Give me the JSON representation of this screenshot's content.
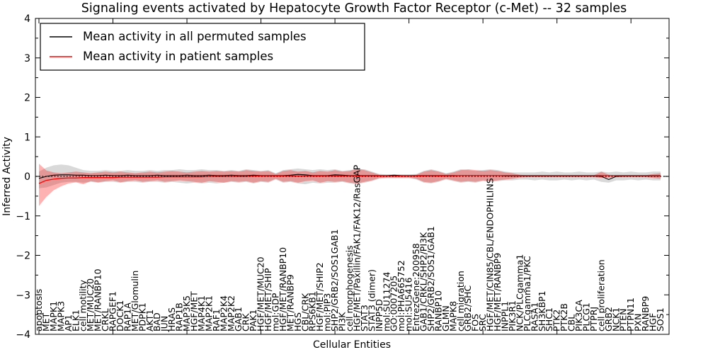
{
  "figure": {
    "title": "Signaling events activated by Hepatocyte Growth Factor Receptor (c-Met) -- 32 samples",
    "xlabel": "Cellular Entities",
    "ylabel": "Inferred Activity"
  },
  "legend": {
    "position": "upper left",
    "items": [
      {
        "label": "Mean activity in all permuted samples",
        "color": "#000000"
      },
      {
        "label": "Mean activity in patient samples",
        "color": "#ff0000"
      }
    ]
  },
  "colors": {
    "permuted_line": "#000000",
    "patient_line": "#ff0000",
    "permuted_band": "#a0a0a0",
    "patient_band": "#ff0000",
    "axis": "#000000",
    "background": "#ffffff"
  },
  "chart_data": {
    "type": "line",
    "title": "Signaling events activated by Hepatocyte Growth Factor Receptor (c-Met) -- 32 samples",
    "xlabel": "Cellular Entities",
    "ylabel": "Inferred Activity",
    "ylim": [
      -4,
      4
    ],
    "yticks": [
      4,
      3,
      2,
      1,
      0,
      -1,
      -2,
      -3,
      -4
    ],
    "grid": false,
    "legend_position": "upper left",
    "zero_line": "dotted black at y=0",
    "x_tick_label_rotation": 90,
    "categories": [
      "apoptosis",
      "MET",
      "MAPK1",
      "MAPK3",
      "AP1",
      "ELK1",
      "cell motility",
      "MET/MUC20",
      "MET/RANBP10",
      "CRKL",
      "RAPGEF1",
      "DOCK1",
      "RAP1A",
      "MET/Glomulin",
      "PDPK1",
      "AKT1",
      "BAD",
      "JUN",
      "HRAS",
      "RAP1B",
      "MAP3K5",
      "HGF/MET",
      "MAP4K1",
      "MAP2K1",
      "RAF1",
      "MAP2K4",
      "MAP2K2",
      "GAB1",
      "CRK",
      "PAK1",
      "HGF/MET/MUC20",
      "HGF/MET/SHIP",
      "mol:GDP",
      "HGF/MET/RANBP10",
      "MET/RANBP9",
      "HGS",
      "CBL/CRK",
      "RPS6KB1",
      "HGF/MET/SHIP2",
      "mol:PIP3",
      "SHP2/GRB2/SOS1GAB1",
      "PI3K",
      "cell morphogenesis",
      "HGF/MET/Paxillin/FAK1/FAK12/RasGAP",
      "STAT3",
      "STAT3 (dimer)",
      "INPP5D",
      "mol:SU11274",
      "GO:0007205",
      "mol:PHA665752",
      "mol:SU5416",
      "EntrezGene:200958",
      "GAB1/CRKL/SHP2/PI3K",
      "SHP2/GRB2/SOS1/GAB1",
      "RANBP10",
      "GLMN",
      "MAPK8",
      "cell migration",
      "GRB2/SHC",
      "FOS",
      "SRC",
      "HGF/MET/CIN85/CBL/ENDOPHILINS",
      "HGF/MET/RANBP9",
      "INPPL1",
      "PIK3R1",
      "NCK/PLCgamma1",
      "PLCgamma1/PKC",
      "RASA1",
      "SH3KBP1",
      "SHC1",
      "PTK2",
      "PTK2B",
      "CBL",
      "PIK3CA",
      "PLCG1",
      "PTPRJ",
      "cell proliferation",
      "GRB2",
      "NCK1",
      "PTEN",
      "PTPN11",
      "PXN",
      "RANBP9",
      "HGF",
      "SOS1"
    ],
    "series": [
      {
        "name": "Mean activity in all permuted samples",
        "color": "#000000",
        "band_color": "#a0a0a0",
        "band_opacity": 0.4,
        "values": [
          -0.05,
          0.0,
          0.03,
          0.04,
          0.04,
          0.03,
          0.03,
          0.02,
          0.02,
          0.03,
          0.02,
          0.02,
          0.03,
          0.02,
          0.02,
          0.02,
          0.03,
          0.02,
          0.02,
          0.02,
          0.03,
          0.02,
          0.02,
          0.03,
          0.02,
          0.02,
          0.03,
          0.02,
          0.02,
          0.03,
          0.02,
          0.02,
          0.02,
          0.02,
          0.03,
          0.05,
          0.04,
          0.02,
          0.02,
          0.02,
          0.04,
          0.03,
          0.02,
          0.02,
          0.02,
          0.02,
          0.02,
          0.02,
          0.03,
          0.02,
          0.02,
          0.02,
          0.02,
          0.02,
          0.02,
          0.02,
          0.02,
          0.02,
          0.02,
          0.02,
          0.02,
          0.02,
          0.02,
          0.01,
          0.01,
          0.01,
          0.01,
          0.01,
          0.01,
          0.01,
          0.01,
          0.01,
          0.01,
          0.01,
          0.01,
          0.01,
          0.0,
          -0.08,
          0.0,
          0.01,
          0.01,
          0.01,
          0.01,
          0.01,
          0.01
        ],
        "band_upper": [
          0.12,
          0.22,
          0.28,
          0.3,
          0.28,
          0.22,
          0.16,
          0.14,
          0.14,
          0.16,
          0.14,
          0.14,
          0.16,
          0.14,
          0.14,
          0.16,
          0.14,
          0.16,
          0.16,
          0.18,
          0.16,
          0.16,
          0.18,
          0.16,
          0.16,
          0.14,
          0.16,
          0.14,
          0.18,
          0.16,
          0.14,
          0.16,
          0.08,
          0.16,
          0.18,
          0.2,
          0.18,
          0.16,
          0.18,
          0.16,
          0.18,
          0.14,
          0.16,
          0.18,
          0.18,
          0.12,
          0.06,
          0.05,
          0.05,
          0.05,
          0.05,
          0.06,
          0.14,
          0.18,
          0.14,
          0.08,
          0.12,
          0.18,
          0.16,
          0.14,
          0.16,
          0.18,
          0.16,
          0.12,
          0.1,
          0.1,
          0.1,
          0.1,
          0.12,
          0.1,
          0.12,
          0.1,
          0.1,
          0.12,
          0.1,
          0.1,
          0.12,
          0.1,
          0.12,
          0.1,
          0.12,
          0.1,
          0.1,
          0.12,
          0.12
        ],
        "band_lower": [
          -0.3,
          -0.28,
          -0.22,
          -0.16,
          -0.14,
          -0.14,
          -0.16,
          -0.14,
          -0.16,
          -0.14,
          -0.14,
          -0.16,
          -0.14,
          -0.14,
          -0.16,
          -0.14,
          -0.14,
          -0.16,
          -0.14,
          -0.16,
          -0.18,
          -0.16,
          -0.18,
          -0.16,
          -0.18,
          -0.16,
          -0.14,
          -0.16,
          -0.14,
          -0.18,
          -0.14,
          -0.16,
          -0.08,
          -0.16,
          -0.14,
          -0.18,
          -0.2,
          -0.16,
          -0.18,
          -0.16,
          -0.16,
          -0.14,
          -0.18,
          -0.2,
          -0.16,
          -0.12,
          -0.06,
          -0.05,
          -0.05,
          -0.05,
          -0.05,
          -0.08,
          -0.16,
          -0.18,
          -0.14,
          -0.08,
          -0.12,
          -0.16,
          -0.14,
          -0.16,
          -0.12,
          -0.14,
          -0.12,
          -0.1,
          -0.1,
          -0.08,
          -0.08,
          -0.1,
          -0.08,
          -0.1,
          -0.1,
          -0.08,
          -0.1,
          -0.08,
          -0.1,
          -0.08,
          -0.14,
          -0.16,
          -0.1,
          -0.1,
          -0.08,
          -0.1,
          -0.08,
          -0.1,
          -0.1
        ]
      },
      {
        "name": "Mean activity in patient samples",
        "color": "#ff0000",
        "band_color": "#ff0000",
        "band_opacity": 0.3,
        "values": [
          -0.18,
          -0.1,
          -0.07,
          -0.05,
          -0.04,
          -0.04,
          -0.03,
          -0.03,
          -0.03,
          -0.03,
          -0.03,
          -0.02,
          -0.02,
          -0.02,
          -0.02,
          -0.02,
          -0.02,
          -0.01,
          -0.01,
          -0.01,
          -0.01,
          -0.01,
          -0.01,
          0.0,
          0.0,
          0.0,
          0.0,
          0.0,
          0.0,
          0.01,
          0.01,
          0.01,
          0.01,
          0.01,
          0.01,
          0.01,
          0.01,
          0.01,
          0.01,
          0.01,
          0.01,
          0.01,
          0.01,
          0.01,
          0.01,
          0.01,
          0.01,
          0.01,
          0.01,
          0.01,
          0.01,
          0.01,
          0.01,
          0.01,
          0.01,
          0.01,
          0.01,
          0.02,
          0.02,
          0.02,
          0.02,
          0.02,
          0.02,
          0.02,
          0.02,
          0.02,
          0.02,
          0.02,
          0.02,
          0.02,
          0.02,
          0.02,
          0.02,
          0.02,
          0.02,
          0.02,
          0.02,
          0.02,
          0.02,
          0.02,
          0.02,
          0.02,
          0.02,
          0.02,
          0.02
        ],
        "band_upper": [
          0.32,
          0.15,
          0.1,
          0.08,
          0.1,
          0.12,
          0.1,
          0.08,
          0.1,
          0.12,
          0.1,
          0.12,
          0.1,
          0.08,
          0.1,
          0.12,
          0.1,
          0.12,
          0.14,
          0.12,
          0.1,
          0.12,
          0.14,
          0.12,
          0.14,
          0.12,
          0.14,
          0.12,
          0.16,
          0.14,
          0.12,
          0.14,
          0.06,
          0.14,
          0.16,
          0.12,
          0.14,
          0.1,
          0.14,
          0.12,
          0.16,
          0.12,
          0.14,
          0.2,
          0.16,
          0.1,
          0.04,
          0.03,
          0.03,
          0.03,
          0.03,
          0.04,
          0.12,
          0.16,
          0.12,
          0.06,
          0.1,
          0.16,
          0.18,
          0.16,
          0.14,
          0.16,
          0.14,
          0.1,
          0.08,
          0.04,
          0.03,
          0.03,
          0.03,
          0.03,
          0.03,
          0.03,
          0.03,
          0.03,
          0.03,
          0.03,
          0.12,
          0.04,
          0.03,
          0.03,
          0.03,
          0.03,
          0.03,
          0.06,
          0.08
        ],
        "band_lower": [
          -0.75,
          -0.52,
          -0.35,
          -0.25,
          -0.18,
          -0.15,
          -0.2,
          -0.12,
          -0.15,
          -0.12,
          -0.1,
          -0.15,
          -0.12,
          -0.1,
          -0.14,
          -0.12,
          -0.1,
          -0.14,
          -0.12,
          -0.1,
          -0.12,
          -0.14,
          -0.16,
          -0.12,
          -0.14,
          -0.16,
          -0.12,
          -0.14,
          -0.12,
          -0.16,
          -0.12,
          -0.14,
          -0.06,
          -0.14,
          -0.12,
          -0.16,
          -0.12,
          -0.1,
          -0.16,
          -0.12,
          -0.14,
          -0.12,
          -0.16,
          -0.18,
          -0.14,
          -0.1,
          -0.04,
          -0.03,
          -0.03,
          -0.03,
          -0.03,
          -0.06,
          -0.14,
          -0.16,
          -0.12,
          -0.06,
          -0.1,
          -0.14,
          -0.12,
          -0.14,
          -0.1,
          -0.12,
          -0.1,
          -0.08,
          -0.06,
          -0.03,
          -0.02,
          -0.02,
          -0.02,
          -0.02,
          -0.02,
          -0.02,
          -0.02,
          -0.02,
          -0.02,
          -0.02,
          -0.04,
          -0.03,
          -0.02,
          -0.02,
          -0.02,
          -0.02,
          -0.02,
          -0.04,
          -0.06
        ]
      }
    ]
  }
}
